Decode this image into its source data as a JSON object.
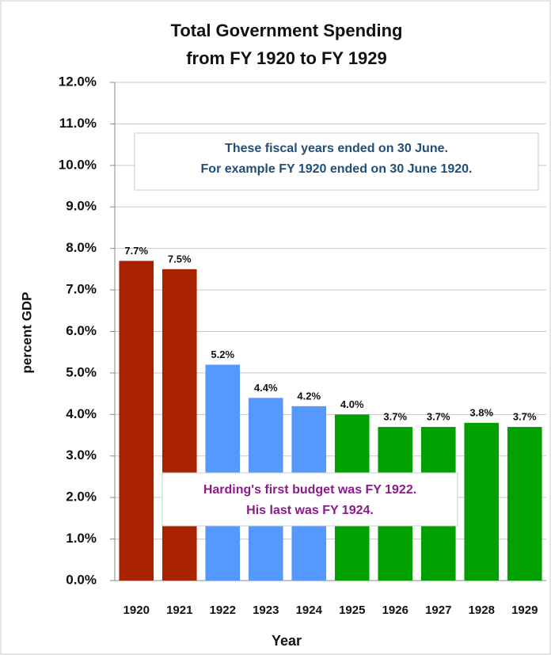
{
  "chart_data": {
    "type": "bar",
    "title": [
      "Total Government Spending",
      "from FY 1920 to FY 1929"
    ],
    "x_label": "Year",
    "y_label": "percent GDP",
    "categories": [
      "1920",
      "1921",
      "1922",
      "1923",
      "1924",
      "1925",
      "1926",
      "1927",
      "1928",
      "1929"
    ],
    "values": [
      7.7,
      7.5,
      5.2,
      4.4,
      4.2,
      4.0,
      3.7,
      3.7,
      3.8,
      3.7
    ],
    "value_labels": [
      "7.7%",
      "7.5%",
      "5.2%",
      "4.4%",
      "4.2%",
      "4.0%",
      "3.7%",
      "3.7%",
      "3.8%",
      "3.7%"
    ],
    "colors": [
      "#a82200",
      "#a82200",
      "#5599ff",
      "#5599ff",
      "#5599ff",
      "#00a000",
      "#00a000",
      "#00a000",
      "#00a000",
      "#00a000"
    ],
    "ylim": [
      0,
      12
    ],
    "yticks": [
      {
        "value": 0,
        "label": "0.0%"
      },
      {
        "value": 1,
        "label": "1.0%"
      },
      {
        "value": 2,
        "label": "2.0%"
      },
      {
        "value": 3,
        "label": "3.0%"
      },
      {
        "value": 4,
        "label": "4.0%"
      },
      {
        "value": 5,
        "label": "5.0%"
      },
      {
        "value": 6,
        "label": "6.0%"
      },
      {
        "value": 7,
        "label": "7.0%"
      },
      {
        "value": 8,
        "label": "8.0%"
      },
      {
        "value": 9,
        "label": "9.0%"
      },
      {
        "value": 10,
        "label": "10.0%"
      },
      {
        "value": 11,
        "label": "11.0%"
      },
      {
        "value": 12,
        "label": "12.0%"
      }
    ],
    "grid": true,
    "annotations": [
      {
        "lines": [
          "These fiscal years ended on 30 June.",
          "For example FY 1920 ended on 30 June 1920."
        ],
        "color": "#1f4e79"
      },
      {
        "lines": [
          "Harding's first budget was FY 1922.",
          "His last was FY 1924."
        ],
        "color": "#8b1a8b"
      }
    ]
  }
}
